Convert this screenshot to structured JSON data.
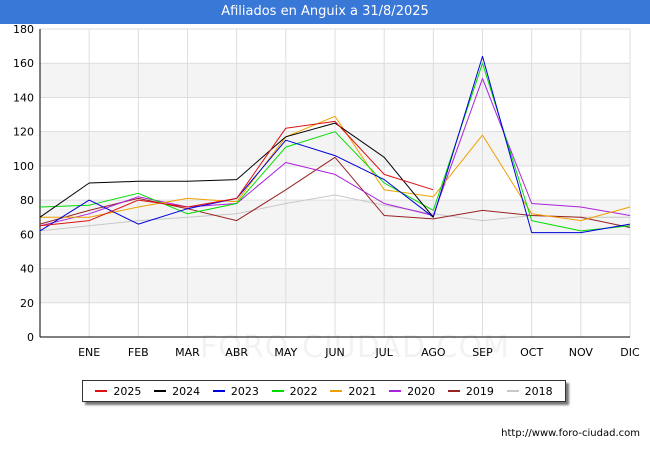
{
  "chart_data": {
    "type": "line",
    "title": "Afiliados en Anguix a 31/8/2025",
    "categories": [
      "",
      "ENE",
      "FEB",
      "MAR",
      "ABR",
      "MAY",
      "JUN",
      "JUL",
      "AGO",
      "SEP",
      "OCT",
      "NOV",
      "DIC"
    ],
    "ylim": [
      0,
      180
    ],
    "yticks": [
      0,
      20,
      40,
      60,
      80,
      100,
      120,
      140,
      160,
      180
    ],
    "grid": true,
    "legend_position": "bottom",
    "series": [
      {
        "name": "2025",
        "color": "#dd1111",
        "values": [
          65,
          68,
          80,
          76,
          81,
          122,
          126,
          95,
          86,
          null,
          null,
          null,
          null
        ]
      },
      {
        "name": "2024",
        "color": "#000000",
        "values": [
          70,
          90,
          91,
          91,
          92,
          117,
          125,
          105,
          70,
          null,
          null,
          null,
          null
        ]
      },
      {
        "name": "2023",
        "color": "#0000dd",
        "values": [
          62,
          80,
          66,
          75,
          81,
          115,
          106,
          92,
          70,
          164,
          61,
          61,
          66
        ]
      },
      {
        "name": "2022",
        "color": "#00dd00",
        "values": [
          76,
          77,
          84,
          72,
          78,
          111,
          120,
          90,
          74,
          160,
          68,
          62,
          65
        ]
      },
      {
        "name": "2021",
        "color": "#f0a000",
        "values": [
          70,
          70,
          76,
          81,
          79,
          117,
          129,
          86,
          82,
          118,
          72,
          68,
          76
        ]
      },
      {
        "name": "2020",
        "color": "#aa22dd",
        "values": [
          65,
          72,
          82,
          76,
          78,
          102,
          95,
          78,
          71,
          151,
          78,
          76,
          71
        ]
      },
      {
        "name": "2019",
        "color": "#992222",
        "values": [
          66,
          74,
          81,
          75,
          68,
          86,
          105,
          71,
          69,
          74,
          71,
          70,
          64
        ]
      },
      {
        "name": "2018",
        "color": "#c8c8c8",
        "values": [
          62,
          65,
          68,
          70,
          72,
          78,
          83,
          77,
          72,
          68,
          71,
          70,
          70
        ]
      }
    ]
  },
  "footer": {
    "url": "http://www.foro-ciudad.com",
    "watermark": "FORO-CIUDAD.COM"
  }
}
